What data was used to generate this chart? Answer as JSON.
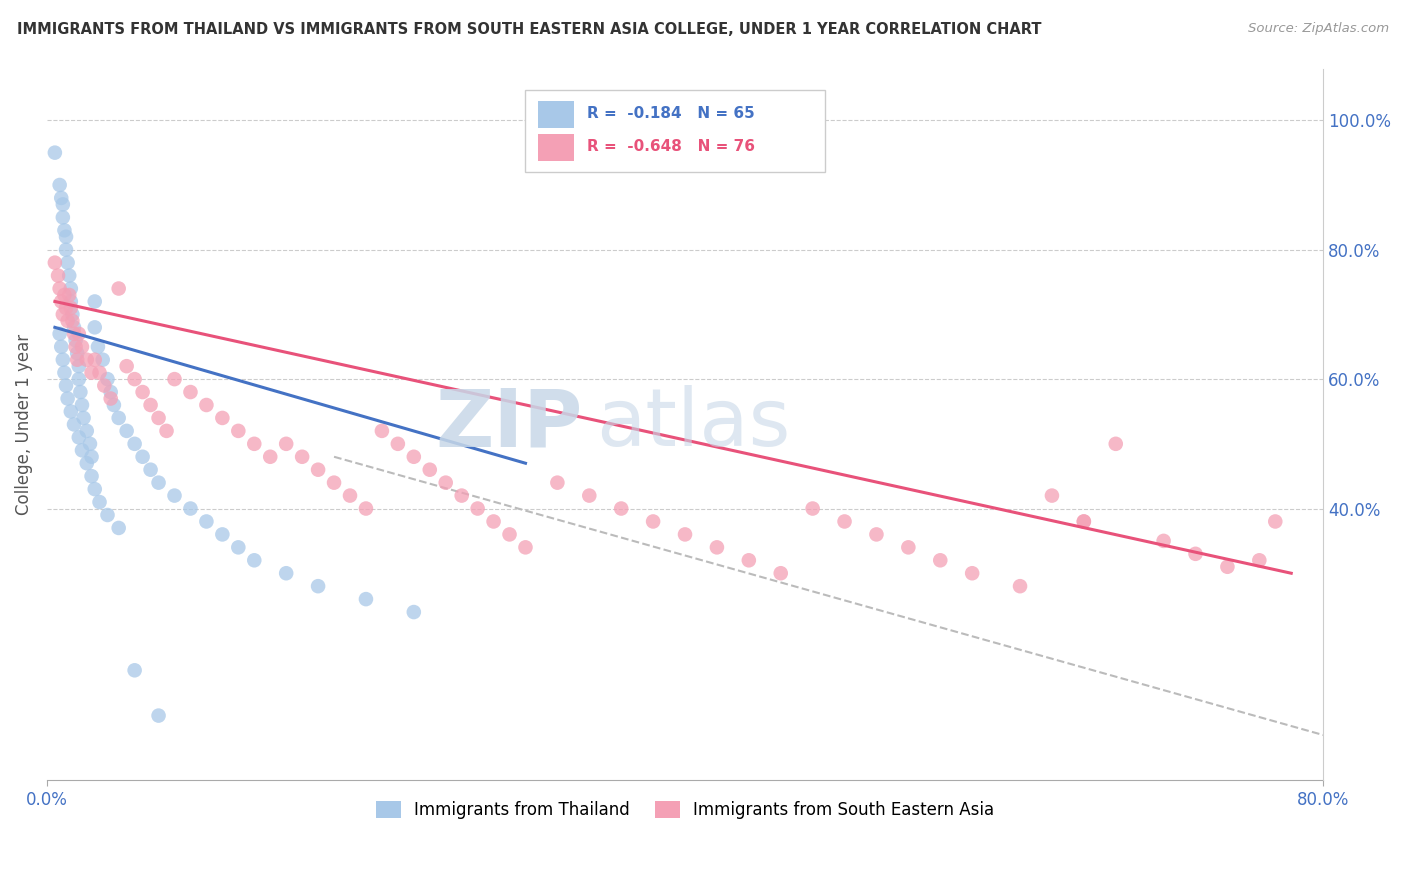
{
  "title": "IMMIGRANTS FROM THAILAND VS IMMIGRANTS FROM SOUTH EASTERN ASIA COLLEGE, UNDER 1 YEAR CORRELATION CHART",
  "source": "Source: ZipAtlas.com",
  "ylabel_left": "College, Under 1 year",
  "right_ytick_vals": [
    1.0,
    0.8,
    0.6,
    0.4
  ],
  "right_ytick_labels": [
    "100.0%",
    "80.0%",
    "60.0%",
    "40.0%"
  ],
  "xlim": [
    0.0,
    0.8
  ],
  "ylim": [
    -0.02,
    1.08
  ],
  "color_blue": "#A8C8E8",
  "color_pink": "#F4A0B5",
  "color_blue_line": "#4472C4",
  "color_pink_line": "#E8527A",
  "color_blue_text": "#4472C4",
  "color_pink_text": "#E8527A",
  "watermark_zip": "ZIP",
  "watermark_atlas": "atlas",
  "blue_line_x": [
    0.005,
    0.3
  ],
  "blue_line_y": [
    0.68,
    0.47
  ],
  "pink_line_x": [
    0.005,
    0.78
  ],
  "pink_line_y": [
    0.72,
    0.3
  ],
  "diag_line_x": [
    0.18,
    0.8
  ],
  "diag_line_y": [
    0.48,
    0.05
  ],
  "grid_color": "#CCCCCC",
  "bg_color": "#FFFFFF",
  "blue_x": [
    0.005,
    0.008,
    0.009,
    0.01,
    0.01,
    0.011,
    0.012,
    0.012,
    0.013,
    0.014,
    0.015,
    0.015,
    0.016,
    0.017,
    0.018,
    0.019,
    0.02,
    0.02,
    0.021,
    0.022,
    0.023,
    0.025,
    0.027,
    0.028,
    0.03,
    0.03,
    0.032,
    0.035,
    0.038,
    0.04,
    0.042,
    0.045,
    0.05,
    0.055,
    0.06,
    0.065,
    0.07,
    0.08,
    0.09,
    0.1,
    0.11,
    0.12,
    0.13,
    0.15,
    0.17,
    0.2,
    0.23,
    0.008,
    0.009,
    0.01,
    0.011,
    0.012,
    0.013,
    0.015,
    0.017,
    0.02,
    0.022,
    0.025,
    0.028,
    0.03,
    0.033,
    0.038,
    0.045,
    0.055,
    0.07
  ],
  "blue_y": [
    0.95,
    0.9,
    0.88,
    0.87,
    0.85,
    0.83,
    0.82,
    0.8,
    0.78,
    0.76,
    0.74,
    0.72,
    0.7,
    0.68,
    0.66,
    0.64,
    0.62,
    0.6,
    0.58,
    0.56,
    0.54,
    0.52,
    0.5,
    0.48,
    0.72,
    0.68,
    0.65,
    0.63,
    0.6,
    0.58,
    0.56,
    0.54,
    0.52,
    0.5,
    0.48,
    0.46,
    0.44,
    0.42,
    0.4,
    0.38,
    0.36,
    0.34,
    0.32,
    0.3,
    0.28,
    0.26,
    0.24,
    0.67,
    0.65,
    0.63,
    0.61,
    0.59,
    0.57,
    0.55,
    0.53,
    0.51,
    0.49,
    0.47,
    0.45,
    0.43,
    0.41,
    0.39,
    0.37,
    0.15,
    0.08
  ],
  "pink_x": [
    0.005,
    0.007,
    0.008,
    0.009,
    0.01,
    0.011,
    0.012,
    0.013,
    0.014,
    0.015,
    0.016,
    0.017,
    0.018,
    0.019,
    0.02,
    0.022,
    0.025,
    0.028,
    0.03,
    0.033,
    0.036,
    0.04,
    0.045,
    0.05,
    0.055,
    0.06,
    0.065,
    0.07,
    0.075,
    0.08,
    0.09,
    0.1,
    0.11,
    0.12,
    0.13,
    0.14,
    0.15,
    0.16,
    0.17,
    0.18,
    0.19,
    0.2,
    0.21,
    0.22,
    0.23,
    0.24,
    0.25,
    0.26,
    0.27,
    0.28,
    0.29,
    0.3,
    0.32,
    0.34,
    0.36,
    0.38,
    0.4,
    0.42,
    0.44,
    0.46,
    0.48,
    0.5,
    0.52,
    0.54,
    0.56,
    0.58,
    0.61,
    0.63,
    0.65,
    0.67,
    0.7,
    0.72,
    0.74,
    0.76,
    0.77,
    0.65
  ],
  "pink_y": [
    0.78,
    0.76,
    0.74,
    0.72,
    0.7,
    0.73,
    0.71,
    0.69,
    0.73,
    0.71,
    0.69,
    0.67,
    0.65,
    0.63,
    0.67,
    0.65,
    0.63,
    0.61,
    0.63,
    0.61,
    0.59,
    0.57,
    0.74,
    0.62,
    0.6,
    0.58,
    0.56,
    0.54,
    0.52,
    0.6,
    0.58,
    0.56,
    0.54,
    0.52,
    0.5,
    0.48,
    0.5,
    0.48,
    0.46,
    0.44,
    0.42,
    0.4,
    0.52,
    0.5,
    0.48,
    0.46,
    0.44,
    0.42,
    0.4,
    0.38,
    0.36,
    0.34,
    0.44,
    0.42,
    0.4,
    0.38,
    0.36,
    0.34,
    0.32,
    0.3,
    0.4,
    0.38,
    0.36,
    0.34,
    0.32,
    0.3,
    0.28,
    0.42,
    0.38,
    0.5,
    0.35,
    0.33,
    0.31,
    0.32,
    0.38,
    0.38
  ]
}
